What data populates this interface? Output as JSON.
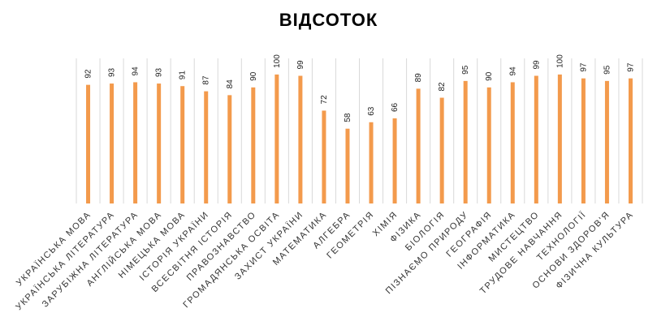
{
  "chart_data": {
    "type": "bar",
    "title": "ВІДСОТОК",
    "xlabel": "",
    "ylabel": "",
    "ylim": [
      0,
      110
    ],
    "grid": "vertical",
    "legend": "none",
    "bar_color": "#F39A4C",
    "categories": [
      "УКРАЇНСЬКА МОВА",
      "УКРАЇНСЬКА ЛІТЕРАТУРА",
      "ЗАРУБІЖНА ЛІТЕРАТУРА",
      "АНГЛІЙСЬКА МОВА",
      "НІМЕЦЬКА МОВА",
      "ІСТОРІЯ УКРАЇНИ",
      "ВСЕСВІТНЯ ІСТОРІЯ",
      "ПРАВОЗНАВСТВО",
      "ГРОМАДЯНСЬКА ОСВІТА",
      "ЗАХИСТ УКРАЇНИ",
      "МАТЕМАТИКА",
      "АЛГЕБРА",
      "ГЕОМЕТРІЯ",
      "ХІМІЯ",
      "ФІЗИКА",
      "БІОЛОГІЯ",
      "ПІЗНАЄМО ПРИРОДУ",
      "ГЕОГРАФІЯ",
      "ІНФОРМАТИКА",
      "МИСТЕЦТВО",
      "ТРУДОВЕ НАВЧАННЯ",
      "ТЕХНОЛОГІЇ",
      "ОСНОВИ ЗДОРОВ'Я",
      "ФІЗИЧНА КУЛЬТУРА"
    ],
    "values": [
      92,
      93,
      94,
      93,
      91,
      87,
      84,
      90,
      100,
      99,
      72,
      58,
      63,
      66,
      89,
      82,
      95,
      90,
      94,
      99,
      100,
      97,
      95,
      97
    ]
  }
}
